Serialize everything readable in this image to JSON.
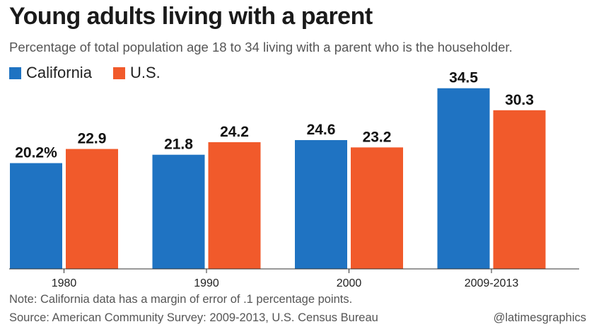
{
  "header": {
    "title": "Young adults living with a parent",
    "subtitle": "Percentage of total population age 18 to 34 living with a parent who is the householder."
  },
  "footer": {
    "note": "Note: California data has a margin of error of .1 percentage points.",
    "source": "Source: American Community Survey: 2009-2013, U.S. Census Bureau",
    "credit": "@latimesgraphics"
  },
  "colors": {
    "california": "#1f73c2",
    "us": "#f15a2b",
    "axis": "#333333"
  },
  "chart_data": {
    "type": "bar",
    "categories": [
      "1980",
      "1990",
      "2000",
      "2009-2013"
    ],
    "series": [
      {
        "name": "California",
        "color": "#1f73c2",
        "values": [
          20.2,
          21.8,
          24.6,
          34.5
        ],
        "labels": [
          "20.2%",
          "21.8",
          "24.6",
          "34.5"
        ]
      },
      {
        "name": "U.S.",
        "color": "#f15a2b",
        "values": [
          22.9,
          24.2,
          23.2,
          30.3
        ],
        "labels": [
          "22.9",
          "24.2",
          "23.2",
          "30.3"
        ]
      }
    ],
    "ylim": [
      0,
      35
    ],
    "grid": false,
    "legend": "top-left"
  }
}
